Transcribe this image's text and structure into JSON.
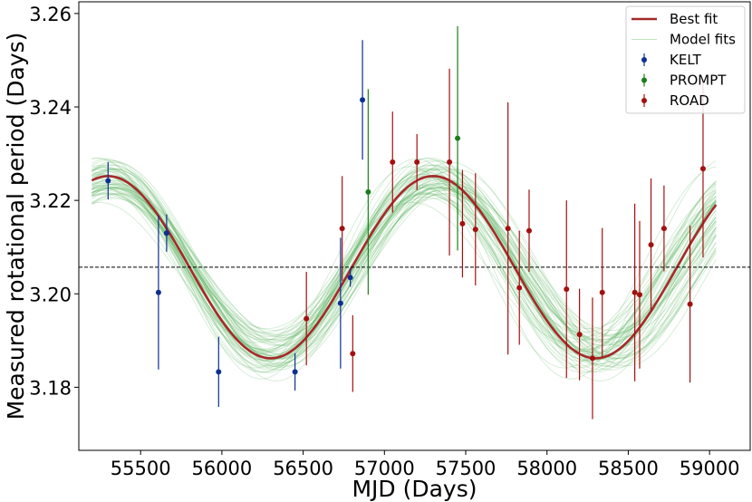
{
  "chart_data": {
    "type": "scatter",
    "xlabel": "MJD (Days)",
    "ylabel": "Measured rotational period (Days)",
    "xlim": [
      55120,
      59250
    ],
    "ylim": [
      3.1665,
      3.2625
    ],
    "xticks": [
      55500,
      56000,
      56500,
      57000,
      57500,
      58000,
      58500,
      59000
    ],
    "yticks": [
      3.18,
      3.2,
      3.22,
      3.24,
      3.26
    ],
    "ytick_labels": [
      "3.18",
      "3.20",
      "3.22",
      "3.24",
      "3.26"
    ],
    "grid": false,
    "legend_position": "top-right",
    "reference_line": {
      "y": 3.2057,
      "style": "dashed",
      "color": "#000000"
    },
    "best_fit": {
      "name": "Best fit",
      "color": "#a52a2a",
      "model": "sinusoid",
      "mean": 3.2057,
      "amplitude": 0.0195,
      "period_days": 2000,
      "peak_mjd": 55300,
      "x_range": [
        55200,
        59050
      ]
    },
    "model_fits": {
      "name": "Model fits",
      "color": "#4caf50",
      "count": 60
    },
    "series": [
      {
        "name": "KELT",
        "color": "#0d2f8f",
        "points": [
          {
            "x": 55300,
            "y": 3.2242,
            "err": 0.004
          },
          {
            "x": 55610,
            "y": 3.2003,
            "err": 0.0165
          },
          {
            "x": 55660,
            "y": 3.213,
            "err": 0.004
          },
          {
            "x": 55980,
            "y": 3.1833,
            "err": 0.0075
          },
          {
            "x": 56450,
            "y": 3.1833,
            "err": 0.004
          },
          {
            "x": 56730,
            "y": 3.198,
            "err": 0.014
          },
          {
            "x": 56790,
            "y": 3.2035,
            "err": 0.002
          },
          {
            "x": 56865,
            "y": 3.2415,
            "err": 0.0128
          }
        ]
      },
      {
        "name": "PROMPT",
        "color": "#1a7f1a",
        "points": [
          {
            "x": 56900,
            "y": 3.2218,
            "err": 0.022
          },
          {
            "x": 57450,
            "y": 3.2333,
            "err": 0.024
          }
        ]
      },
      {
        "name": "ROAD",
        "color": "#a31010",
        "points": [
          {
            "x": 56520,
            "y": 3.1947,
            "err": 0.01
          },
          {
            "x": 56740,
            "y": 3.214,
            "err": 0.0112
          },
          {
            "x": 56805,
            "y": 3.1872,
            "err": 0.0082
          },
          {
            "x": 57050,
            "y": 3.2282,
            "err": 0.0108
          },
          {
            "x": 57200,
            "y": 3.2282,
            "err": 0.006
          },
          {
            "x": 57400,
            "y": 3.2282,
            "err": 0.02
          },
          {
            "x": 57480,
            "y": 3.215,
            "err": 0.0115
          },
          {
            "x": 57560,
            "y": 3.2138,
            "err": 0.012
          },
          {
            "x": 57760,
            "y": 3.214,
            "err": 0.027
          },
          {
            "x": 57830,
            "y": 3.2013,
            "err": 0.0122
          },
          {
            "x": 57890,
            "y": 3.2135,
            "err": 0.0088
          },
          {
            "x": 58120,
            "y": 3.201,
            "err": 0.019
          },
          {
            "x": 58200,
            "y": 3.1913,
            "err": 0.0098
          },
          {
            "x": 58280,
            "y": 3.1862,
            "err": 0.013
          },
          {
            "x": 58340,
            "y": 3.2003,
            "err": 0.0138
          },
          {
            "x": 58540,
            "y": 3.2003,
            "err": 0.019
          },
          {
            "x": 58570,
            "y": 3.1998,
            "err": 0.0158
          },
          {
            "x": 58640,
            "y": 3.2105,
            "err": 0.0142
          },
          {
            "x": 58720,
            "y": 3.214,
            "err": 0.0092
          },
          {
            "x": 58880,
            "y": 3.1978,
            "err": 0.0168
          },
          {
            "x": 58960,
            "y": 3.2268,
            "err": 0.019
          }
        ]
      }
    ]
  }
}
